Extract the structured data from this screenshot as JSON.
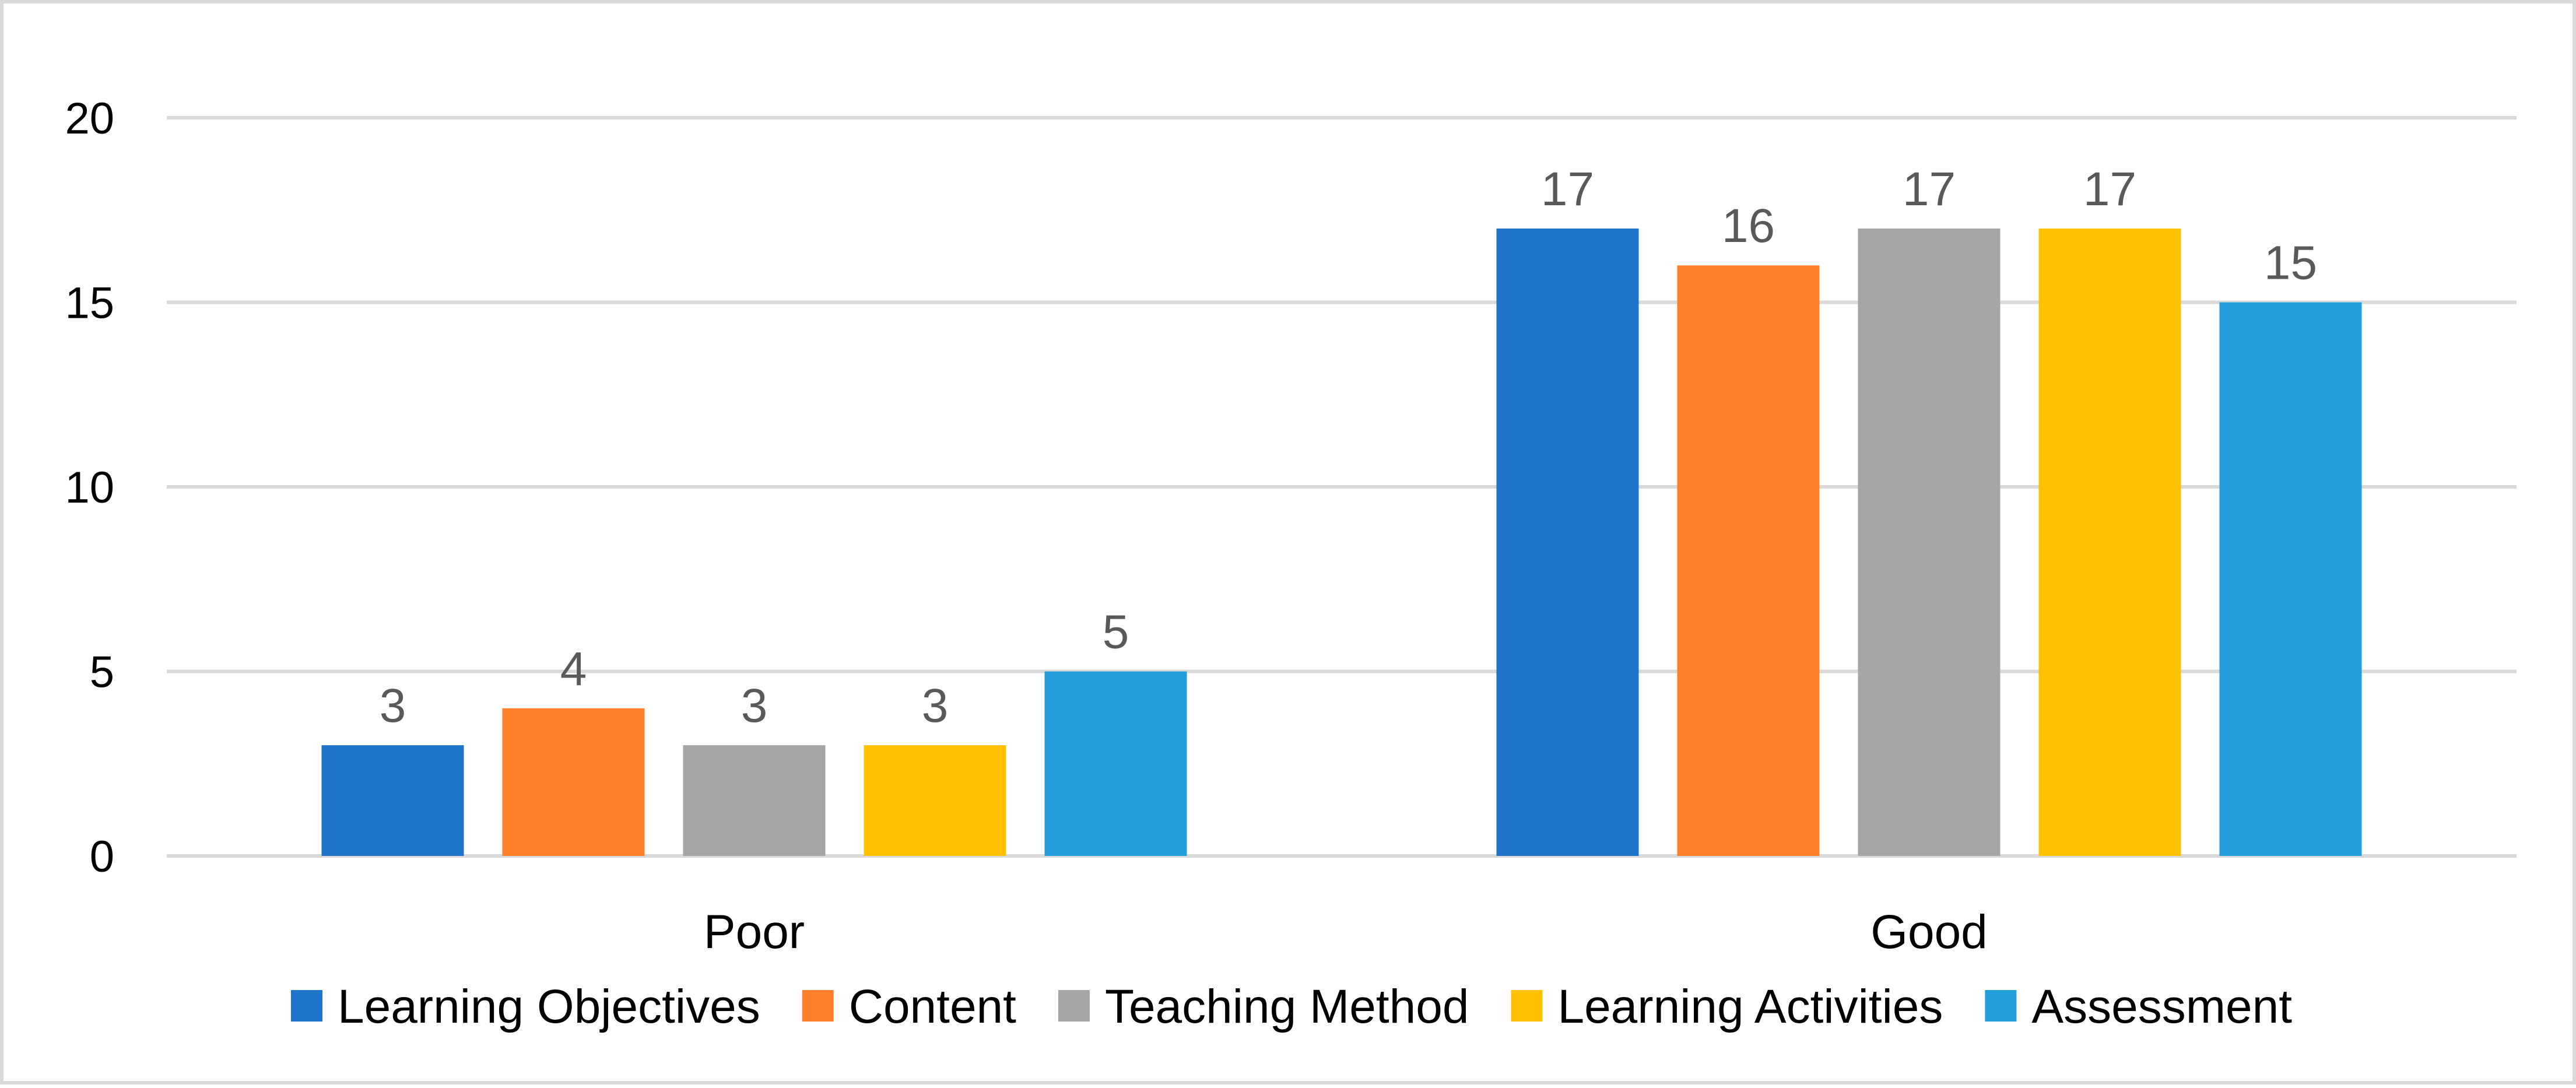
{
  "chart_data": {
    "type": "bar",
    "categories": [
      "Poor",
      "Good"
    ],
    "series": [
      {
        "name": "Learning Objectives",
        "values": [
          3,
          17
        ],
        "color": "#1f73c8"
      },
      {
        "name": "Content",
        "values": [
          4,
          16
        ],
        "color": "#fe7f2a"
      },
      {
        "name": "Teaching Method",
        "values": [
          3,
          17
        ],
        "color": "#a6a6a6"
      },
      {
        "name": "Learning Activities",
        "values": [
          3,
          17
        ],
        "color": "#ffc000"
      },
      {
        "name": "Assessment",
        "values": [
          5,
          15
        ],
        "color": "#219eda"
      }
    ],
    "yticks": [
      "0",
      "5",
      "10",
      "15",
      "20"
    ],
    "ylim": [
      0,
      20
    ],
    "title": "",
    "xlabel": "",
    "ylabel": "",
    "grid": true,
    "legend_position": "bottom",
    "data_labels": true
  }
}
